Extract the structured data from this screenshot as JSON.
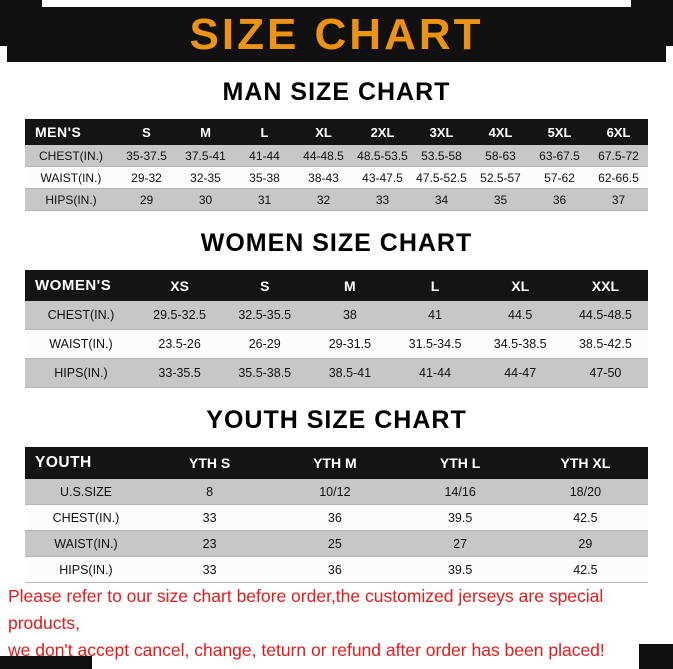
{
  "page": {
    "title": "SIZE CHART",
    "footer_line1": "Please refer to our size chart before order,the customized jerseys are special products,",
    "footer_line2": "we don't accept cancel, change, teturn or refund after order has been placed!"
  },
  "colors": {
    "banner_black": "#101010",
    "title_orange": "#EC9412",
    "row_gray": "#c7c7c7",
    "footer_red": "#e21b1b"
  },
  "sections": [
    {
      "heading": "MAN SIZE CHART",
      "table": {
        "header": [
          "MEN'S",
          "S",
          "M",
          "L",
          "XL",
          "2XL",
          "3XL",
          "4XL",
          "5XL",
          "6XL"
        ],
        "rows": [
          [
            "CHEST(IN.)",
            "35-37.5",
            "37.5-41",
            "41-44",
            "44-48.5",
            "48.5-53.5",
            "53.5-58",
            "58-63",
            "63-67.5",
            "67.5-72"
          ],
          [
            "WAIST(IN.)",
            "29-32",
            "32-35",
            "35-38",
            "38-43",
            "43-47.5",
            "47.5-52.5",
            "52.5-57",
            "57-62",
            "62-66.5"
          ],
          [
            "HIPS(IN.)",
            "29",
            "30",
            "31",
            "32",
            "33",
            "34",
            "35",
            "36",
            "37"
          ]
        ]
      }
    },
    {
      "heading": "WOMEN SIZE CHART",
      "table": {
        "header": [
          "WOMEN'S",
          "XS",
          "S",
          "M",
          "L",
          "XL",
          "XXL"
        ],
        "rows": [
          [
            "CHEST(IN.)",
            "29.5-32.5",
            "32.5-35.5",
            "38",
            "41",
            "44.5",
            "44.5-48.5"
          ],
          [
            "WAIST(IN.)",
            "23.5-26",
            "26-29",
            "29-31.5",
            "31.5-34.5",
            "34.5-38.5",
            "38.5-42.5"
          ],
          [
            "HIPS(IN.)",
            "33-35.5",
            "35.5-38.5",
            "38.5-41",
            "41-44",
            "44-47",
            "47-50"
          ]
        ]
      }
    },
    {
      "heading": "YOUTH SIZE CHART",
      "table": {
        "header": [
          "YOUTH",
          "YTH S",
          "YTH M",
          "YTH L",
          "YTH XL"
        ],
        "rows": [
          [
            "U.S.SIZE",
            "8",
            "10/12",
            "14/16",
            "18/20"
          ],
          [
            "CHEST(IN.)",
            "33",
            "36",
            "39.5",
            "42.5"
          ],
          [
            "WAIST(IN.)",
            "23",
            "25",
            "27",
            "29"
          ],
          [
            "HIPS(IN.)",
            "33",
            "36",
            "39.5",
            "42.5"
          ]
        ]
      }
    }
  ]
}
